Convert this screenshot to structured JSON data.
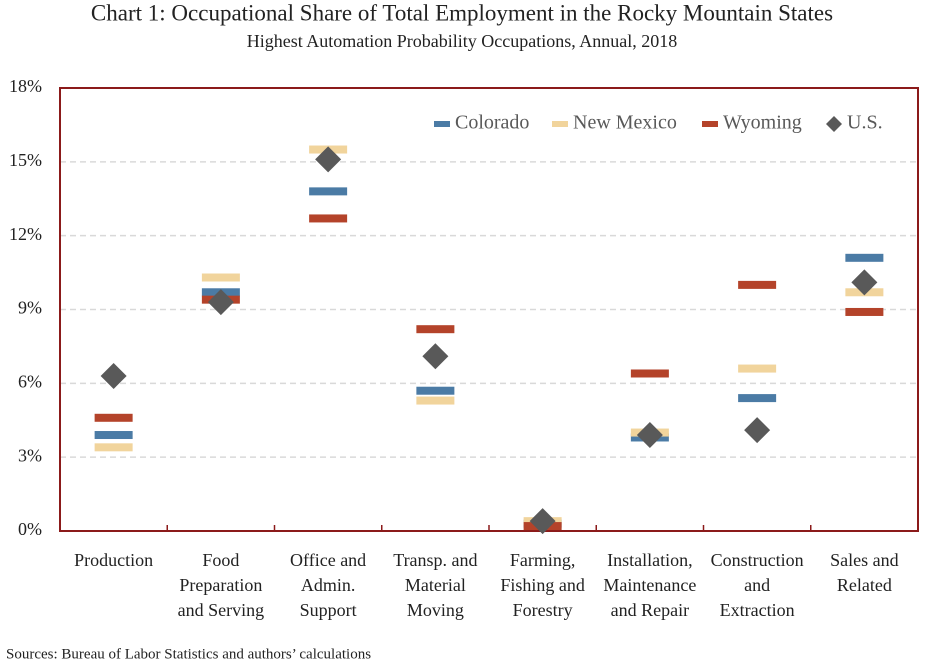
{
  "chart_data": {
    "type": "dot",
    "title": "Chart 1: Occupational Share of Total Employment in the Rocky Mountain States",
    "subtitle": "Highest Automation Probability Occupations, Annual, 2018",
    "source": "Sources: Bureau of Labor Statistics and authors’ calculations",
    "categories": [
      "Production",
      "Food\nPreparation\nand Serving",
      "Office and\nAdmin.\nSupport",
      "Transp. and\nMaterial\nMoving",
      "Farming,\nFishing and\nForestry",
      "Installation,\nMaintenance\nand Repair",
      "Construction\nand\nExtraction",
      "Sales and\nRelated"
    ],
    "series": [
      {
        "name": "Colorado",
        "color": "#4b7ba5",
        "marker": "dash",
        "values": [
          3.9,
          9.7,
          13.8,
          5.7,
          0.3,
          3.8,
          5.4,
          11.1
        ]
      },
      {
        "name": "New Mexico",
        "color": "#f1d49c",
        "marker": "dash",
        "values": [
          3.4,
          10.3,
          15.5,
          5.3,
          0.4,
          4.0,
          6.6,
          9.7
        ]
      },
      {
        "name": "Wyoming",
        "color": "#b4432a",
        "marker": "dash",
        "values": [
          4.6,
          9.4,
          12.7,
          8.2,
          0.2,
          6.4,
          10.0,
          8.9
        ]
      },
      {
        "name": "U.S.",
        "color": "#595959",
        "marker": "diamond",
        "values": [
          6.3,
          9.3,
          15.1,
          7.1,
          0.4,
          3.9,
          4.1,
          10.1
        ]
      }
    ],
    "ylim": [
      0,
      18
    ],
    "yticks": [
      {
        "value": 0,
        "label": "0%"
      },
      {
        "value": 3,
        "label": "3%"
      },
      {
        "value": 6,
        "label": "6%"
      },
      {
        "value": 9,
        "label": "9%"
      },
      {
        "value": 12,
        "label": "12%"
      },
      {
        "value": 15,
        "label": "15%"
      },
      {
        "value": 18,
        "label": "18%"
      }
    ],
    "grid": true,
    "legend": "top-right"
  }
}
